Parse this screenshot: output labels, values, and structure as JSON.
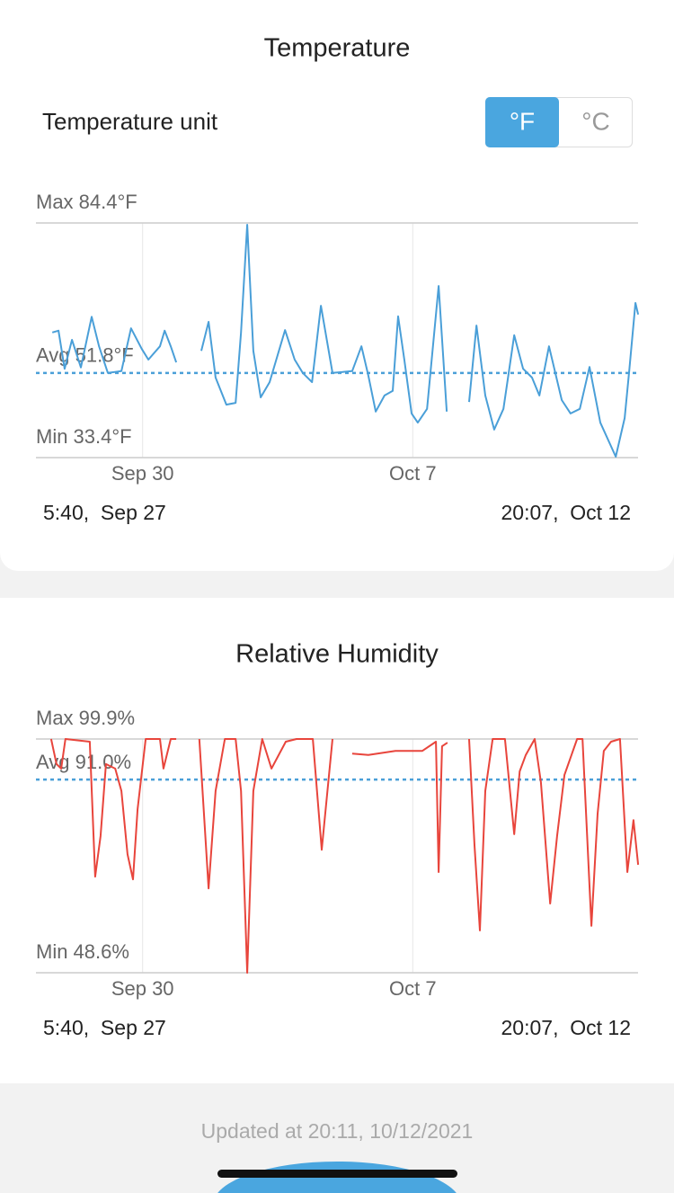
{
  "ui": {
    "unit_label": "Temperature unit",
    "unit_options": [
      "°F",
      "°C"
    ],
    "selected_unit": 0,
    "updated": "Updated at 20:11,  10/12/2021"
  },
  "chart_data": [
    {
      "type": "line",
      "title": "Temperature",
      "color": "#4a9fd8",
      "ref_color": "#4a9fd8",
      "ylim": [
        33.4,
        84.4
      ],
      "xlim": [
        0.236,
        15.838
      ],
      "xticks": [
        {
          "value": 3,
          "label": "Sep 30"
        },
        {
          "value": 10,
          "label": "Oct 7"
        }
      ],
      "reference_lines": [
        {
          "name": "Max",
          "value": 84.4,
          "label": "Max 84.4°F"
        },
        {
          "name": "Avg",
          "value": 51.8,
          "label": "Avg 51.8°F"
        },
        {
          "name": "Min",
          "value": 33.4,
          "label": "Min 33.4°F"
        }
      ],
      "start_label": "5:40,  Sep 27",
      "end_label": "20:07,  Oct 12",
      "x": [
        0.66,
        0.82,
        0.98,
        1.17,
        1.4,
        1.68,
        1.87,
        2.1,
        2.45,
        2.7,
        2.98,
        3.15,
        3.45,
        3.57,
        3.73,
        3.87,
        4.2,
        4.52,
        4.71,
        4.89,
        5.17,
        5.41,
        5.55,
        5.71,
        5.87,
        6.06,
        6.29,
        6.69,
        6.94,
        7.15,
        7.39,
        7.62,
        7.92,
        8.43,
        8.67,
        8.85,
        9.04,
        9.27,
        9.48,
        9.62,
        9.78,
        9.97,
        10.13,
        10.37,
        10.67,
        10.88,
        11.2,
        11.46,
        11.65,
        11.88,
        12.11,
        12.35,
        12.63,
        12.86,
        13.09,
        13.28,
        13.53,
        13.86,
        14.09,
        14.33,
        14.58,
        14.86,
        15.26,
        15.49,
        15.61,
        15.77,
        15.84
      ],
      "values": [
        60.6,
        61,
        52.7,
        59,
        53,
        64,
        57.6,
        51.8,
        52.2,
        61.5,
        57,
        54.7,
        57.6,
        61,
        57.6,
        54.1,
        null,
        56.6,
        62.9,
        50.8,
        44.9,
        45.3,
        60.6,
        84,
        56.6,
        46.5,
        49.8,
        61.1,
        54.7,
        51.8,
        49.8,
        66.4,
        51.8,
        52.2,
        57.6,
        51.2,
        43.4,
        46.9,
        47.9,
        64.1,
        54.7,
        43,
        41,
        44,
        70.7,
        43.4,
        null,
        45.5,
        62.1,
        46.9,
        39.5,
        44,
        60,
        52.7,
        50.8,
        46.9,
        57.6,
        45.9,
        43,
        44,
        53.1,
        41,
        33.6,
        42,
        52.3,
        67,
        64.5
      ]
    },
    {
      "type": "line",
      "title": "Relative Humidity",
      "color": "#e8453c",
      "ref_color": "#4a9fd8",
      "ylim": [
        48.6,
        99.9
      ],
      "xlim": [
        0.236,
        15.838
      ],
      "xticks": [
        {
          "value": 3,
          "label": "Sep 30"
        },
        {
          "value": 10,
          "label": "Oct 7"
        }
      ],
      "reference_lines": [
        {
          "name": "Max",
          "value": 99.9,
          "label": "Max 99.9%"
        },
        {
          "name": "Avg",
          "value": 91.0,
          "label": "Avg 91.0%"
        },
        {
          "name": "Min",
          "value": 48.6,
          "label": "Min 48.6%"
        }
      ],
      "start_label": "5:40,  Sep 27",
      "end_label": "20:07,  Oct 12",
      "x": [
        0.63,
        0.77,
        0.89,
        1.0,
        1.63,
        1.77,
        1.91,
        2.05,
        2.29,
        2.45,
        2.61,
        2.75,
        2.87,
        3.08,
        3.45,
        3.54,
        3.73,
        3.87,
        4.2,
        4.47,
        4.71,
        4.89,
        5.13,
        5.41,
        5.55,
        5.71,
        5.87,
        6.1,
        6.34,
        6.71,
        6.99,
        7.41,
        7.64,
        7.92,
        8.2,
        8.43,
        8.85,
        9.55,
        10.25,
        10.6,
        10.67,
        10.76,
        10.9,
        11.2,
        11.46,
        11.6,
        11.74,
        11.88,
        12.07,
        12.39,
        12.63,
        12.77,
        12.93,
        13.16,
        13.32,
        13.56,
        13.74,
        13.93,
        14.26,
        14.4,
        14.63,
        14.79,
        14.95,
        15.14,
        15.37,
        15.56,
        15.72,
        15.84
      ],
      "values": [
        99.9,
        94.4,
        93.4,
        99.9,
        99.3,
        69.7,
        78.6,
        94.4,
        93.4,
        88.5,
        74.6,
        69.1,
        84.5,
        99.9,
        99.9,
        93.4,
        99.9,
        99.9,
        null,
        99.9,
        67.1,
        88.5,
        99.9,
        99.9,
        88.5,
        48.6,
        88.5,
        99.9,
        93.4,
        99.3,
        99.9,
        99.9,
        75.6,
        99.9,
        null,
        96.7,
        96.4,
        97.3,
        97.3,
        99.3,
        70.7,
        98.3,
        99.1,
        null,
        99.9,
        76.6,
        57.9,
        88.5,
        99.9,
        99.9,
        79,
        92.8,
        96.4,
        99.9,
        90.4,
        63.8,
        78.6,
        92,
        99.9,
        99.9,
        58.9,
        83.5,
        97.3,
        99.3,
        99.9,
        70.7,
        82.1,
        72.3
      ]
    }
  ]
}
